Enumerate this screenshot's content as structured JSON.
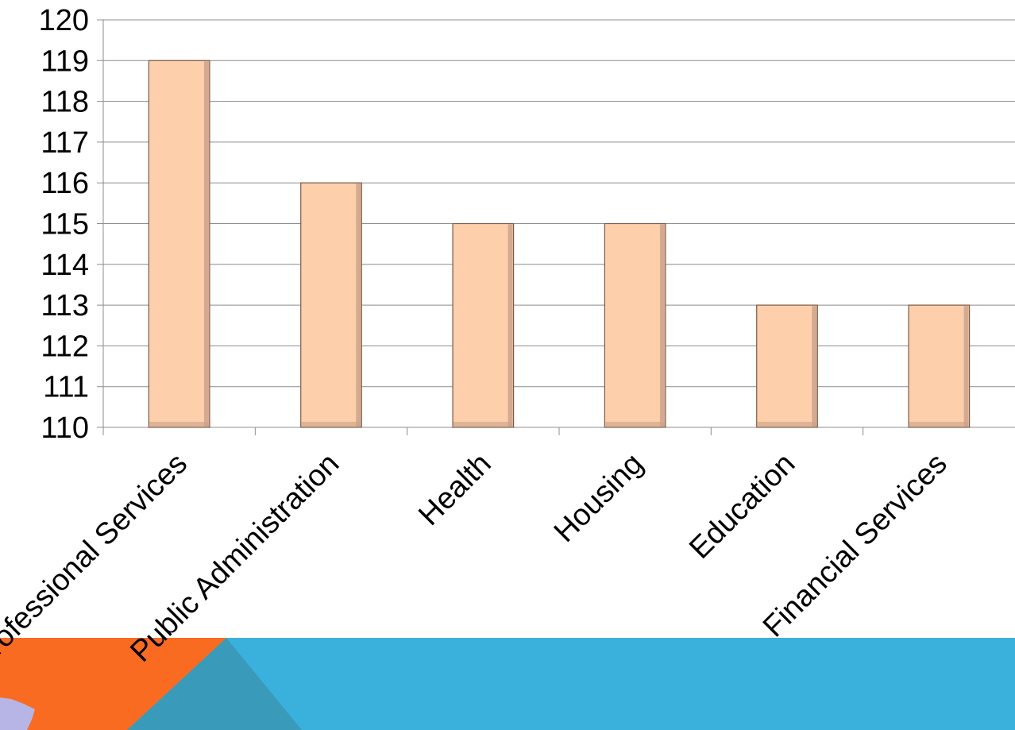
{
  "chart_data": {
    "type": "bar",
    "categories": [
      "Professional Services",
      "Public Administration",
      "Health",
      "Housing",
      "Education",
      "Financial Services"
    ],
    "values": [
      119,
      116,
      115,
      115,
      113,
      113
    ],
    "ylim": [
      110,
      120
    ],
    "yticks": [
      110,
      111,
      112,
      113,
      114,
      115,
      116,
      117,
      118,
      119,
      120
    ],
    "grid": true,
    "legend": "none"
  },
  "colors": {
    "bar_fill": "#fdd0ab",
    "bar_edge": "#7a5a4a",
    "bar_shadow": "#c9a089",
    "grid": "#8c8c8c",
    "axis_text": "#000000",
    "band_orange": "#f96b21",
    "band_blue": "#3ab1dd",
    "band_teal": "#3a9ab9",
    "map_lilac": "#b6b5e6"
  }
}
